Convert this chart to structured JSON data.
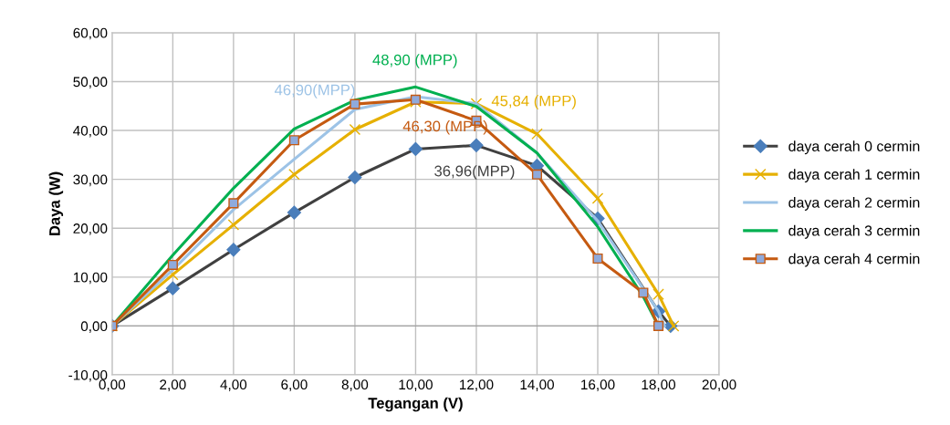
{
  "chart_data": {
    "type": "line",
    "xlabel": "Tegangan (V)",
    "ylabel": "Daya (W)",
    "xlim": [
      0,
      20
    ],
    "ylim": [
      -10,
      60
    ],
    "xticks": [
      {
        "value": 0,
        "label": "0,00"
      },
      {
        "value": 2,
        "label": "2,00"
      },
      {
        "value": 4,
        "label": "4,00"
      },
      {
        "value": 6,
        "label": "6,00"
      },
      {
        "value": 8,
        "label": "8,00"
      },
      {
        "value": 10,
        "label": "10,00"
      },
      {
        "value": 12,
        "label": "12,00"
      },
      {
        "value": 14,
        "label": "14,00"
      },
      {
        "value": 16,
        "label": "16,00"
      },
      {
        "value": 18,
        "label": "18,00"
      },
      {
        "value": 20,
        "label": "20,00"
      }
    ],
    "yticks": [
      {
        "value": -10,
        "label": "-10,00"
      },
      {
        "value": 0,
        "label": "0,00"
      },
      {
        "value": 10,
        "label": "10,00"
      },
      {
        "value": 20,
        "label": "20,00"
      },
      {
        "value": 30,
        "label": "30,00"
      },
      {
        "value": 40,
        "label": "40,00"
      },
      {
        "value": 50,
        "label": "50,00"
      },
      {
        "value": 60,
        "label": "60,00"
      }
    ],
    "grid": true,
    "legend": "right",
    "series": [
      {
        "name": "daya cerah 0 cermin",
        "color": "#404040",
        "marker": "diamond",
        "x": [
          0,
          2,
          4,
          6,
          8,
          10,
          12,
          14,
          16,
          18,
          18.4
        ],
        "values": [
          0,
          7.7,
          15.6,
          23.2,
          30.4,
          36.2,
          36.96,
          32.8,
          22,
          3,
          0
        ]
      },
      {
        "name": "daya cerah 1 cermin",
        "color": "#e6b000",
        "marker": "cross",
        "x": [
          0,
          2,
          4,
          6,
          8,
          10,
          12,
          14,
          16,
          18,
          18.5
        ],
        "values": [
          0,
          10.5,
          20.7,
          31,
          40.2,
          45.84,
          45.5,
          39.3,
          26.1,
          6.5,
          0
        ]
      },
      {
        "name": "daya cerah 2 cermin",
        "color": "#9dc3e6",
        "marker": "none",
        "x": [
          0,
          2,
          4,
          6,
          8,
          10,
          12,
          14,
          16,
          18,
          18.2
        ],
        "values": [
          0,
          11.5,
          23.8,
          34.1,
          44.3,
          46.9,
          45.5,
          35.4,
          21.5,
          3,
          0
        ]
      },
      {
        "name": "daya cerah 3 cermin",
        "color": "#00b050",
        "marker": "none",
        "x": [
          0,
          2,
          4,
          6,
          8,
          10,
          12,
          14,
          16,
          17.5,
          18
        ],
        "values": [
          0,
          14.5,
          28.2,
          40.3,
          46.2,
          48.9,
          44.9,
          35.4,
          20.3,
          6,
          0
        ]
      },
      {
        "name": "daya cerah 4 cermin",
        "color": "#c55a11",
        "marker": "square",
        "x": [
          0,
          2,
          4,
          6,
          8,
          10,
          12,
          14,
          16,
          17.5,
          18
        ],
        "values": [
          0,
          12.5,
          25.1,
          38,
          45.4,
          46.3,
          42,
          31,
          13.8,
          6.8,
          0
        ]
      }
    ],
    "annotations": [
      "36,96(MPP)",
      "45,84 (MPP)",
      "46,90(MPP)",
      "48,90 (MPP)",
      "46,30 (MPP)"
    ]
  }
}
